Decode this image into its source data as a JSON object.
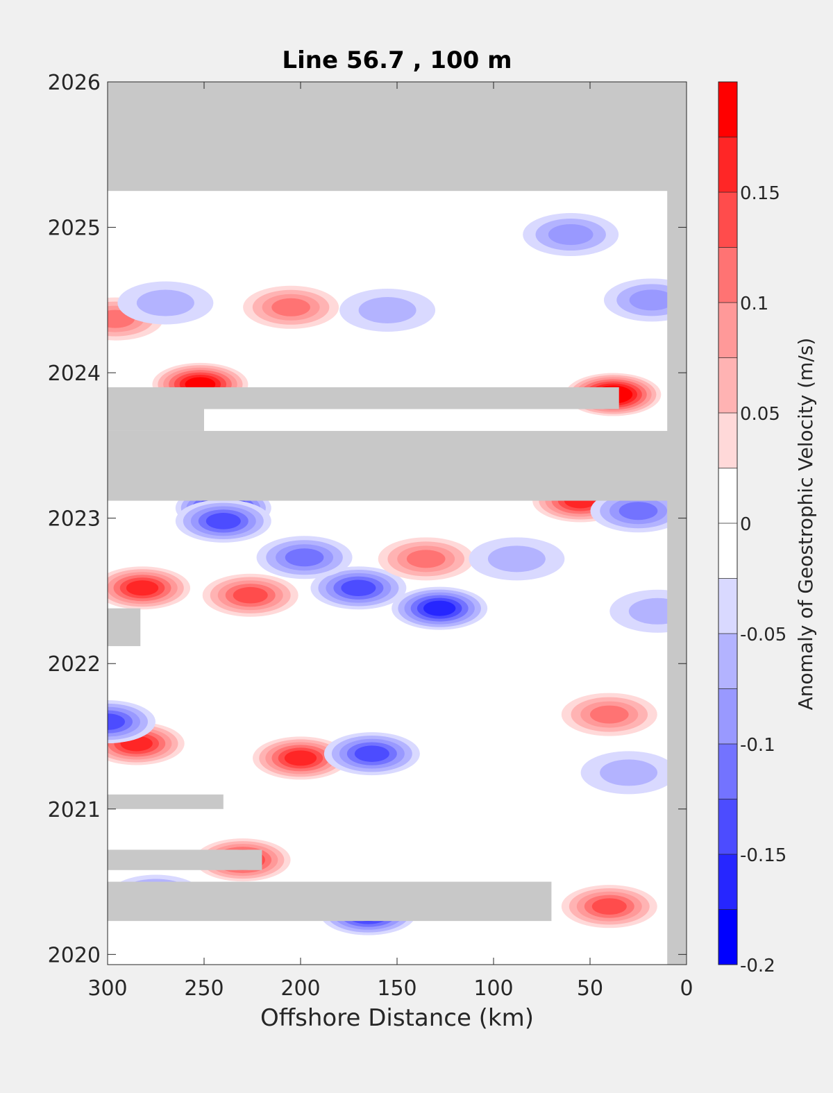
{
  "chart_data": {
    "type": "heatmap",
    "title": "Line 56.7 , 100 m",
    "xlabel": "Offshore Distance (km)",
    "ylabel": "",
    "x_reversed": true,
    "xlim": [
      0,
      300
    ],
    "ylim": [
      2019.93,
      2026
    ],
    "x_ticks": [
      300,
      250,
      200,
      150,
      100,
      50,
      0
    ],
    "y_ticks": [
      2020,
      2021,
      2022,
      2023,
      2024,
      2025,
      2026
    ],
    "colorbar": {
      "label": "Anomaly of Geostrophic Velocity (m/s)",
      "range": [
        -0.2,
        0.2
      ],
      "ticks": [
        "0.15",
        "0.1",
        "0.05",
        "0",
        "-0.05",
        "-0.1",
        "-0.15",
        "-0.2"
      ],
      "tick_values": [
        0.15,
        0.1,
        0.05,
        0,
        -0.05,
        -0.1,
        -0.15,
        -0.2
      ],
      "levels": [
        {
          "lo": -0.2,
          "hi": -0.175,
          "color": "#0000ff"
        },
        {
          "lo": -0.175,
          "hi": -0.15,
          "color": "#2626ff"
        },
        {
          "lo": -0.15,
          "hi": -0.125,
          "color": "#4c4cff"
        },
        {
          "lo": -0.125,
          "hi": -0.1,
          "color": "#7373ff"
        },
        {
          "lo": -0.1,
          "hi": -0.075,
          "color": "#9999ff"
        },
        {
          "lo": -0.075,
          "hi": -0.05,
          "color": "#b3b3ff"
        },
        {
          "lo": -0.05,
          "hi": -0.025,
          "color": "#d9d9ff"
        },
        {
          "lo": -0.025,
          "hi": 0,
          "color": "#ffffff"
        },
        {
          "lo": 0,
          "hi": 0.025,
          "color": "#ffffff"
        },
        {
          "lo": 0.025,
          "hi": 0.05,
          "color": "#ffd9d9"
        },
        {
          "lo": 0.05,
          "hi": 0.075,
          "color": "#ffb3b3"
        },
        {
          "lo": 0.075,
          "hi": 0.1,
          "color": "#ff9999"
        },
        {
          "lo": 0.1,
          "hi": 0.125,
          "color": "#ff7373"
        },
        {
          "lo": 0.125,
          "hi": 0.15,
          "color": "#ff4c4c"
        },
        {
          "lo": 0.15,
          "hi": 0.175,
          "color": "#ff2626"
        },
        {
          "lo": 0.175,
          "hi": 0.2,
          "color": "#ff0000"
        }
      ]
    },
    "nodata_color": "#c8c8c8",
    "nodata_regions": [
      {
        "x": [
          0,
          300
        ],
        "y": [
          2025.25,
          2026
        ]
      },
      {
        "x": [
          0,
          10
        ],
        "y": [
          2019.93,
          2026
        ]
      },
      {
        "x": [
          0,
          300
        ],
        "y": [
          2023.12,
          2023.6
        ]
      },
      {
        "x": [
          35,
          300
        ],
        "y": [
          2023.75,
          2023.9
        ]
      },
      {
        "x": [
          250,
          300
        ],
        "y": [
          2023.6,
          2023.75
        ]
      },
      {
        "x": [
          283,
          300
        ],
        "y": [
          2022.12,
          2022.38
        ]
      },
      {
        "x": [
          240,
          300
        ],
        "y": [
          2021.0,
          2021.1
        ]
      },
      {
        "x": [
          220,
          300
        ],
        "y": [
          2020.58,
          2020.72
        ]
      },
      {
        "x": [
          70,
          300
        ],
        "y": [
          2020.23,
          2020.5
        ]
      }
    ],
    "features": [
      {
        "x": 252,
        "y": 2023.92,
        "value": 0.17
      },
      {
        "x": 38,
        "y": 2023.85,
        "value": 0.2
      },
      {
        "x": 55,
        "y": 2023.12,
        "value": 0.15
      },
      {
        "x": 25,
        "y": 2023.05,
        "value": -0.09
      },
      {
        "x": 240,
        "y": 2023.07,
        "value": -0.18
      },
      {
        "x": 282,
        "y": 2022.52,
        "value": 0.14
      },
      {
        "x": 226,
        "y": 2022.47,
        "value": 0.13
      },
      {
        "x": 170,
        "y": 2022.52,
        "value": -0.12
      },
      {
        "x": 198,
        "y": 2022.73,
        "value": -0.11
      },
      {
        "x": 128,
        "y": 2022.38,
        "value": -0.16
      },
      {
        "x": 135,
        "y": 2022.72,
        "value": 0.09
      },
      {
        "x": 285,
        "y": 2021.45,
        "value": 0.15
      },
      {
        "x": 200,
        "y": 2021.35,
        "value": 0.15
      },
      {
        "x": 163,
        "y": 2021.38,
        "value": -0.12
      },
      {
        "x": 40,
        "y": 2021.65,
        "value": 0.1
      },
      {
        "x": 230,
        "y": 2020.65,
        "value": 0.16
      },
      {
        "x": 165,
        "y": 2020.28,
        "value": -0.14
      },
      {
        "x": 40,
        "y": 2020.33,
        "value": 0.12
      },
      {
        "x": 296,
        "y": 2024.37,
        "value": 0.11
      },
      {
        "x": 205,
        "y": 2024.45,
        "value": 0.09
      },
      {
        "x": 18,
        "y": 2024.5,
        "value": -0.07
      },
      {
        "x": 270,
        "y": 2024.48,
        "value": -0.06
      },
      {
        "x": 155,
        "y": 2024.43,
        "value": -0.06
      },
      {
        "x": 240,
        "y": 2022.98,
        "value": -0.13
      },
      {
        "x": 60,
        "y": 2024.95,
        "value": -0.07
      },
      {
        "x": 15,
        "y": 2022.36,
        "value": -0.06
      },
      {
        "x": 300,
        "y": 2021.6,
        "value": -0.13
      },
      {
        "x": 30,
        "y": 2021.25,
        "value": -0.05
      },
      {
        "x": 88,
        "y": 2022.72,
        "value": -0.05
      },
      {
        "x": 275,
        "y": 2020.4,
        "value": -0.1
      }
    ]
  }
}
